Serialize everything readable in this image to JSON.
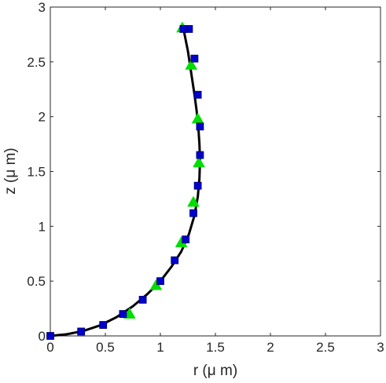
{
  "chart_data": {
    "type": "line",
    "xlabel": "r (μ m)",
    "ylabel": "z (μ m)",
    "xlim": [
      0,
      3
    ],
    "ylim": [
      0,
      3
    ],
    "xticks": [
      "0",
      "0.5",
      "1",
      "1.5",
      "2",
      "2.5",
      "3"
    ],
    "yticks": [
      "0",
      "0.5",
      "1",
      "1.5",
      "2",
      "2.5",
      "3"
    ],
    "grid": false,
    "legend": "none",
    "series": [
      {
        "style": "line",
        "color": "#000000",
        "x": [
          0,
          0.15,
          0.3,
          0.45,
          0.6,
          0.75,
          0.88,
          1.0,
          1.1,
          1.19,
          1.26,
          1.31,
          1.34,
          1.355,
          1.36,
          1.355,
          1.345,
          1.33,
          1.31,
          1.28,
          1.25,
          1.21
        ],
        "y": [
          0,
          0.015,
          0.045,
          0.095,
          0.17,
          0.27,
          0.38,
          0.5,
          0.63,
          0.77,
          0.93,
          1.1,
          1.27,
          1.44,
          1.6,
          1.75,
          1.9,
          2.05,
          2.2,
          2.4,
          2.6,
          2.8
        ]
      },
      {
        "style": "square-markers",
        "color": "#0000cc",
        "x": [
          0,
          0.28,
          0.48,
          0.66,
          0.84,
          1.0,
          1.13,
          1.23,
          1.3,
          1.34,
          1.36,
          1.36,
          1.34,
          1.31,
          1.26,
          1.21
        ],
        "y": [
          0,
          0.04,
          0.1,
          0.2,
          0.33,
          0.5,
          0.69,
          0.88,
          1.12,
          1.37,
          1.65,
          1.91,
          2.2,
          2.53,
          2.8,
          2.8
        ]
      },
      {
        "style": "triangle-markers",
        "color": "#00dd00",
        "x": [
          0.72,
          0.96,
          1.19,
          1.3,
          1.35,
          1.34,
          1.28,
          1.2
        ],
        "y": [
          0.2,
          0.46,
          0.85,
          1.22,
          1.58,
          1.98,
          2.47,
          2.81
        ]
      }
    ]
  }
}
